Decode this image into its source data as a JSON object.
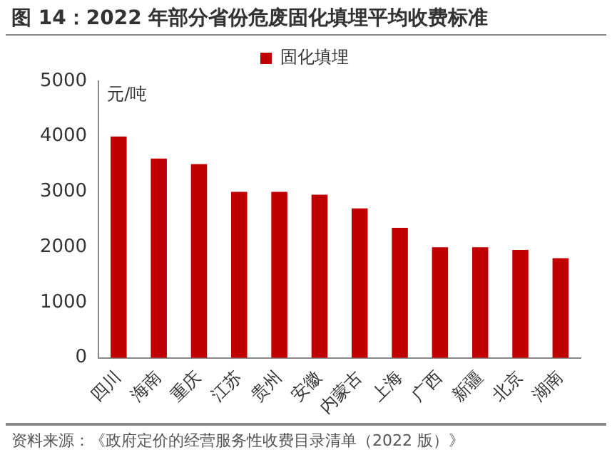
{
  "chart_data": {
    "type": "bar",
    "title": "图 14：2022 年部分省份危废固化填埋平均收费标准",
    "ylabel": "元/吨",
    "categories": [
      "四川",
      "海南",
      "重庆",
      "江苏",
      "贵州",
      "安徽",
      "内蒙古",
      "上海",
      "广西",
      "新疆",
      "北京",
      "湖南"
    ],
    "series": [
      {
        "name": "固化填埋",
        "color": "#c00000",
        "values": [
          4000,
          3600,
          3500,
          3000,
          3000,
          2950,
          2700,
          2350,
          2000,
          2000,
          1950,
          1800
        ]
      }
    ],
    "ylim": [
      0,
      5000
    ],
    "yticks": [
      0,
      1000,
      2000,
      3000,
      4000,
      5000
    ],
    "grid": false,
    "legend": "top",
    "annotations": [
      "资料来源：《政府定价的经营服务性收费目录清单（2022 版）》"
    ]
  }
}
